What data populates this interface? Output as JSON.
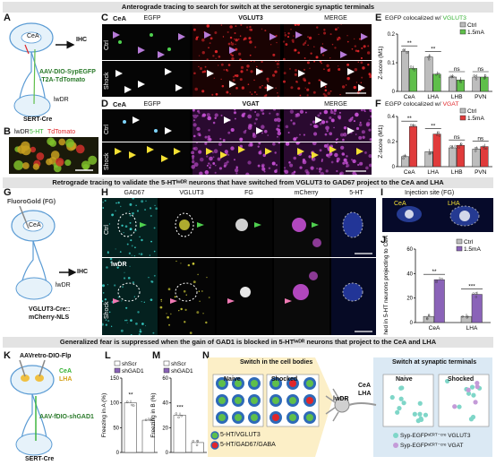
{
  "banners": {
    "top": "Anterograde tracing to search for switch at the serotonergic synaptic terminals",
    "middle": "Retrograde tracing to validate the 5-HTᴵʷᴰᴿ neurons that have switched from VGLUT3 to GAD67 project to the CeA and LHA",
    "bottom": "Generalized fear is suppressed when the gain of GAD1 is blocked in 5-HTᴵʷᴰᴿ neurons that project to the CeA and LHA"
  },
  "panelA": {
    "letter": "A",
    "region1": "CeA",
    "ihc": "IHC",
    "virus": "AAV-DIO-SypEGFP\n-T2A-TdTomato",
    "region2": "lwDR",
    "mouse": "SERT-Cre"
  },
  "panelB": {
    "letter": "B",
    "label_region": "lwDR",
    "label_5ht": "5-HT",
    "label_td": "TdTomato"
  },
  "panelC": {
    "letter": "C",
    "region": "CeA",
    "cols": [
      "EGFP",
      "VGLUT3",
      "MERGE"
    ],
    "rows": [
      "Ctrl",
      "Shock"
    ]
  },
  "panelD": {
    "letter": "D",
    "region": "CeA",
    "cols": [
      "EGFP",
      "VGAT",
      "MERGE"
    ],
    "rows": [
      "Ctrl",
      "Shock"
    ]
  },
  "panelE": {
    "letter": "E",
    "title_pre": "EGFP colocalized w/ ",
    "title_marker": "VGLUT3"
  },
  "panelF": {
    "letter": "F",
    "title_pre": "EGFP colocalized w/ ",
    "title_marker": "VGAT"
  },
  "panelG": {
    "letter": "G",
    "fg": "FluoroGold (FG)",
    "region": "CeA",
    "ihc": "IHC",
    "region2": "lwDR",
    "mouse": "VGLUT3-Cre::\nmCherry-NLS"
  },
  "panelH": {
    "letter": "H",
    "cols": [
      "GAD67",
      "VGLUT3",
      "FG",
      "mCherry",
      "5-HT"
    ],
    "rows": [
      "Ctrl",
      "Shock"
    ],
    "inset": "lwDR"
  },
  "panelI": {
    "letter": "I",
    "title": "Injection site (FG)",
    "left": "CeA",
    "right": "LHA"
  },
  "panelK": {
    "letter": "K",
    "virus1": "AAVretro-DIO-Flp",
    "cea": "CeA",
    "lha": "LHA",
    "virus2": "AAV-fDIO-shGAD1",
    "mouse": "SERT-Cre"
  },
  "panelN": {
    "letter": "N",
    "left_title": "Switch in the cell bodies",
    "right_title": "Switch at synaptic terminals",
    "naive": "Naive",
    "shocked": "Shocked",
    "hub": "lwDR",
    "target": "CeA\nLHA",
    "legend_left": [
      "5-HT/VGLUT3",
      "5-HT/GAD67/GABA"
    ],
    "legend_right": [
      "Syp-EGFPˢᴱᴿᵀ⁻ᶜʳᵉ VGLUT3",
      "Syp-EGFPˢᴱᴿᵀ⁻ᶜʳᵉ VGAT"
    ]
  },
  "colors": {
    "ctrl": "#bdbdbd",
    "shock1": "#5fbf4a",
    "shock2": "#e03b3b",
    "shock3": "#8a63b8",
    "vglut3": "#34b233",
    "vgat": "#e0262a"
  },
  "chart_data": [
    {
      "panel": "E",
      "type": "bar",
      "categories": [
        "CeA",
        "LHA",
        "LHB",
        "PVN"
      ],
      "series": [
        {
          "name": "Ctrl",
          "values": [
            0.14,
            0.12,
            0.05,
            0.05
          ]
        },
        {
          "name": "1.5mA",
          "values": [
            0.08,
            0.06,
            0.04,
            0.05
          ]
        }
      ],
      "ylabel": "Z-score (M1)",
      "ylim": [
        0,
        0.2
      ],
      "yticks": [
        0,
        0.1,
        0.2
      ],
      "significance": [
        "**",
        "**",
        "ns",
        "ns"
      ]
    },
    {
      "panel": "F",
      "type": "bar",
      "categories": [
        "CeA",
        "LHA",
        "LHB",
        "PVN"
      ],
      "series": [
        {
          "name": "Ctrl",
          "values": [
            0.08,
            0.12,
            0.15,
            0.14
          ]
        },
        {
          "name": "1.5mA",
          "values": [
            0.32,
            0.26,
            0.17,
            0.16
          ]
        }
      ],
      "ylabel": "Z-score (M1)",
      "ylim": [
        0,
        0.4
      ],
      "yticks": [
        0,
        0.2,
        0.4
      ],
      "significance": [
        "**",
        "**",
        "ns",
        "ns"
      ]
    },
    {
      "panel": "J",
      "type": "bar",
      "categories": [
        "CeA",
        "LHA"
      ],
      "series": [
        {
          "name": "Ctrl",
          "values": [
            5,
            5
          ]
        },
        {
          "name": "1.5mA",
          "values": [
            35,
            23
          ]
        }
      ],
      "ylabel": "% Switched in 5-HT neurons projecting to CeA or LHA",
      "ylim": [
        0,
        60
      ],
      "yticks": [
        0,
        20,
        40,
        60
      ],
      "significance": [
        "**",
        "***"
      ]
    },
    {
      "panel": "L",
      "type": "bar",
      "categories": [
        "shScr",
        "shGAD1"
      ],
      "values": [
        100,
        65
      ],
      "ylabel": "Freezing in A (%)",
      "ylim": [
        0,
        150
      ],
      "yticks": [
        0,
        50,
        100,
        150
      ],
      "significance": [
        "**"
      ]
    },
    {
      "panel": "M",
      "type": "bar",
      "categories": [
        "shScr",
        "shGAD1"
      ],
      "values": [
        30,
        8
      ],
      "ylabel": "Freezing in B (%)",
      "ylim": [
        0,
        60
      ],
      "yticks": [
        0,
        20,
        40,
        60
      ],
      "significance": [
        "***"
      ]
    }
  ]
}
